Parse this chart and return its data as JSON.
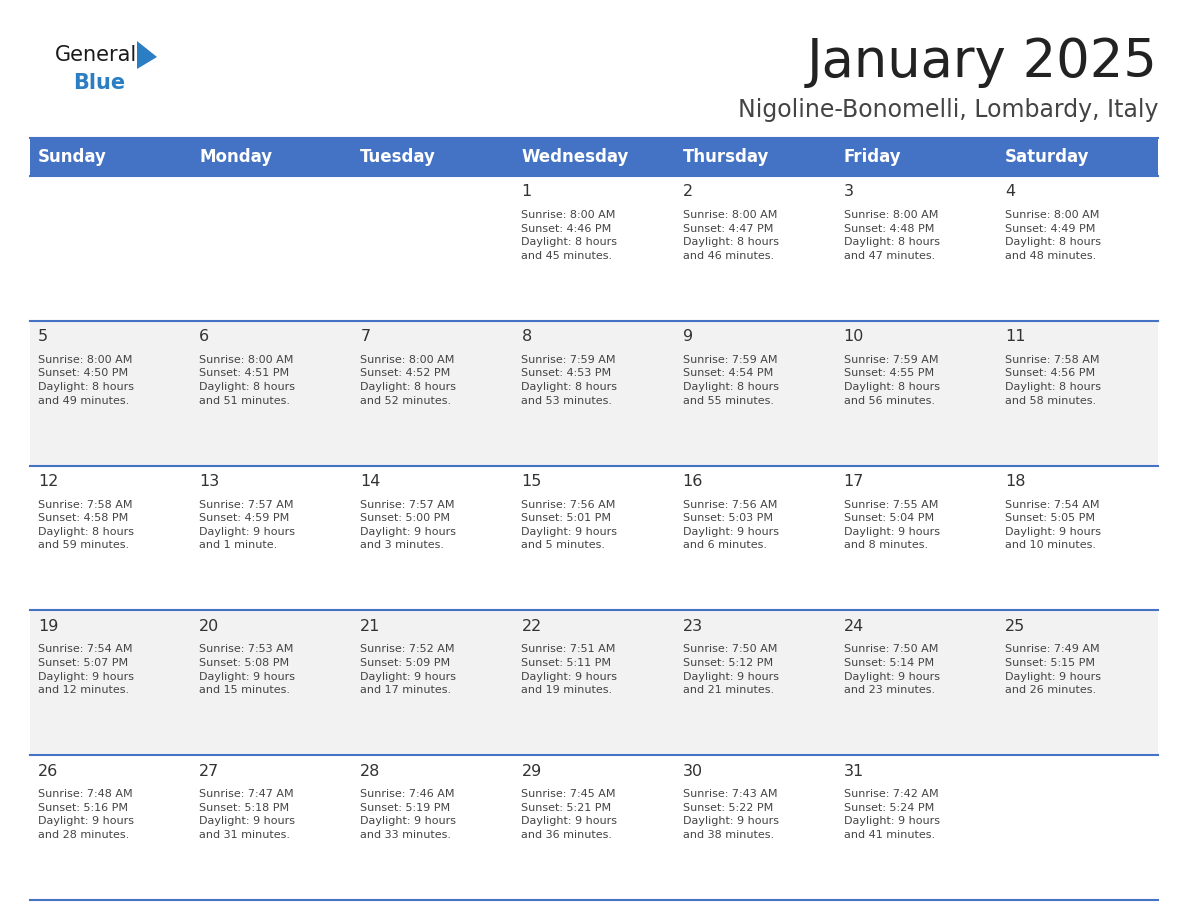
{
  "title": "January 2025",
  "subtitle": "Nigoline-Bonomelli, Lombardy, Italy",
  "days_of_week": [
    "Sunday",
    "Monday",
    "Tuesday",
    "Wednesday",
    "Thursday",
    "Friday",
    "Saturday"
  ],
  "header_bg": "#4472C4",
  "header_text_color": "#FFFFFF",
  "cell_bg_odd": "#FFFFFF",
  "cell_bg_even": "#F2F2F2",
  "border_color": "#4472C4",
  "title_color": "#222222",
  "subtitle_color": "#444444",
  "day_number_color": "#333333",
  "cell_text_color": "#444444",
  "weeks": [
    [
      {
        "day": null,
        "info": null
      },
      {
        "day": null,
        "info": null
      },
      {
        "day": null,
        "info": null
      },
      {
        "day": 1,
        "info": "Sunrise: 8:00 AM\nSunset: 4:46 PM\nDaylight: 8 hours\nand 45 minutes."
      },
      {
        "day": 2,
        "info": "Sunrise: 8:00 AM\nSunset: 4:47 PM\nDaylight: 8 hours\nand 46 minutes."
      },
      {
        "day": 3,
        "info": "Sunrise: 8:00 AM\nSunset: 4:48 PM\nDaylight: 8 hours\nand 47 minutes."
      },
      {
        "day": 4,
        "info": "Sunrise: 8:00 AM\nSunset: 4:49 PM\nDaylight: 8 hours\nand 48 minutes."
      }
    ],
    [
      {
        "day": 5,
        "info": "Sunrise: 8:00 AM\nSunset: 4:50 PM\nDaylight: 8 hours\nand 49 minutes."
      },
      {
        "day": 6,
        "info": "Sunrise: 8:00 AM\nSunset: 4:51 PM\nDaylight: 8 hours\nand 51 minutes."
      },
      {
        "day": 7,
        "info": "Sunrise: 8:00 AM\nSunset: 4:52 PM\nDaylight: 8 hours\nand 52 minutes."
      },
      {
        "day": 8,
        "info": "Sunrise: 7:59 AM\nSunset: 4:53 PM\nDaylight: 8 hours\nand 53 minutes."
      },
      {
        "day": 9,
        "info": "Sunrise: 7:59 AM\nSunset: 4:54 PM\nDaylight: 8 hours\nand 55 minutes."
      },
      {
        "day": 10,
        "info": "Sunrise: 7:59 AM\nSunset: 4:55 PM\nDaylight: 8 hours\nand 56 minutes."
      },
      {
        "day": 11,
        "info": "Sunrise: 7:58 AM\nSunset: 4:56 PM\nDaylight: 8 hours\nand 58 minutes."
      }
    ],
    [
      {
        "day": 12,
        "info": "Sunrise: 7:58 AM\nSunset: 4:58 PM\nDaylight: 8 hours\nand 59 minutes."
      },
      {
        "day": 13,
        "info": "Sunrise: 7:57 AM\nSunset: 4:59 PM\nDaylight: 9 hours\nand 1 minute."
      },
      {
        "day": 14,
        "info": "Sunrise: 7:57 AM\nSunset: 5:00 PM\nDaylight: 9 hours\nand 3 minutes."
      },
      {
        "day": 15,
        "info": "Sunrise: 7:56 AM\nSunset: 5:01 PM\nDaylight: 9 hours\nand 5 minutes."
      },
      {
        "day": 16,
        "info": "Sunrise: 7:56 AM\nSunset: 5:03 PM\nDaylight: 9 hours\nand 6 minutes."
      },
      {
        "day": 17,
        "info": "Sunrise: 7:55 AM\nSunset: 5:04 PM\nDaylight: 9 hours\nand 8 minutes."
      },
      {
        "day": 18,
        "info": "Sunrise: 7:54 AM\nSunset: 5:05 PM\nDaylight: 9 hours\nand 10 minutes."
      }
    ],
    [
      {
        "day": 19,
        "info": "Sunrise: 7:54 AM\nSunset: 5:07 PM\nDaylight: 9 hours\nand 12 minutes."
      },
      {
        "day": 20,
        "info": "Sunrise: 7:53 AM\nSunset: 5:08 PM\nDaylight: 9 hours\nand 15 minutes."
      },
      {
        "day": 21,
        "info": "Sunrise: 7:52 AM\nSunset: 5:09 PM\nDaylight: 9 hours\nand 17 minutes."
      },
      {
        "day": 22,
        "info": "Sunrise: 7:51 AM\nSunset: 5:11 PM\nDaylight: 9 hours\nand 19 minutes."
      },
      {
        "day": 23,
        "info": "Sunrise: 7:50 AM\nSunset: 5:12 PM\nDaylight: 9 hours\nand 21 minutes."
      },
      {
        "day": 24,
        "info": "Sunrise: 7:50 AM\nSunset: 5:14 PM\nDaylight: 9 hours\nand 23 minutes."
      },
      {
        "day": 25,
        "info": "Sunrise: 7:49 AM\nSunset: 5:15 PM\nDaylight: 9 hours\nand 26 minutes."
      }
    ],
    [
      {
        "day": 26,
        "info": "Sunrise: 7:48 AM\nSunset: 5:16 PM\nDaylight: 9 hours\nand 28 minutes."
      },
      {
        "day": 27,
        "info": "Sunrise: 7:47 AM\nSunset: 5:18 PM\nDaylight: 9 hours\nand 31 minutes."
      },
      {
        "day": 28,
        "info": "Sunrise: 7:46 AM\nSunset: 5:19 PM\nDaylight: 9 hours\nand 33 minutes."
      },
      {
        "day": 29,
        "info": "Sunrise: 7:45 AM\nSunset: 5:21 PM\nDaylight: 9 hours\nand 36 minutes."
      },
      {
        "day": 30,
        "info": "Sunrise: 7:43 AM\nSunset: 5:22 PM\nDaylight: 9 hours\nand 38 minutes."
      },
      {
        "day": 31,
        "info": "Sunrise: 7:42 AM\nSunset: 5:24 PM\nDaylight: 9 hours\nand 41 minutes."
      },
      {
        "day": null,
        "info": null
      }
    ]
  ],
  "logo_text_general": "General",
  "logo_text_blue": "Blue",
  "logo_color_general": "#1a1a1a",
  "logo_color_blue": "#2B7EC3",
  "logo_triangle_color": "#2B7EC3"
}
